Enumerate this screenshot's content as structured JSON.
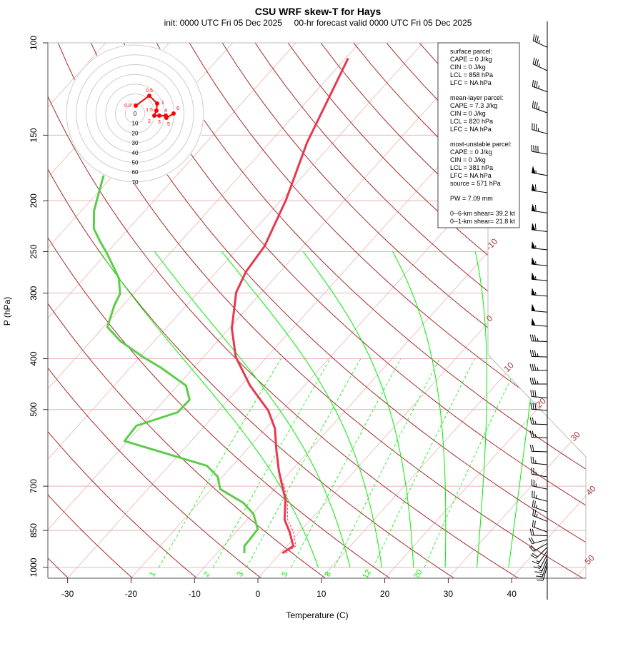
{
  "chart_data": {
    "type": "skew-t",
    "title": "CSU WRF skew-T for Hays",
    "subtitle": "init: 0000 UTC Fri 05 Dec 2025     00-hr forecast valid 0000 UTC Fri 05 Dec 2025",
    "xlabel": "Temperature (C)",
    "ylabel": "P (hPa)",
    "y_scale": "log",
    "ylim": [
      1000,
      100
    ],
    "xlim": [
      -33,
      45
    ],
    "pressure_ticks": [
      "100",
      "150",
      "200",
      "250",
      "300",
      "400",
      "500",
      "700",
      "850",
      "1000"
    ],
    "temperature_ticks": [
      "-30",
      "-20",
      "-10",
      "0",
      "10",
      "20",
      "30",
      "40"
    ],
    "isotherm_labels": [
      "-10",
      "0",
      "10",
      "20",
      "30",
      "40",
      "50"
    ],
    "mixing_ratio_labels": [
      "1",
      "2",
      "3",
      "5",
      "8",
      "12",
      "20"
    ],
    "temperature_profile": [
      [
        939,
        0.3
      ],
      [
        910,
        1.0
      ],
      [
        855,
        -1.6
      ],
      [
        811,
        -4.1
      ],
      [
        743,
        -6.8
      ],
      [
        655,
        -11.9
      ],
      [
        597,
        -15.3
      ],
      [
        543,
        -18.6
      ],
      [
        502,
        -22.2
      ],
      [
        450,
        -28.6
      ],
      [
        397,
        -34.9
      ],
      [
        350,
        -39.6
      ],
      [
        299,
        -44.0
      ],
      [
        273,
        -45.4
      ],
      [
        244,
        -46.1
      ],
      [
        199,
        -49.3
      ],
      [
        155,
        -54.1
      ],
      [
        107,
        -59.6
      ]
    ],
    "dewpoint_profile": [
      [
        939,
        -5.7
      ],
      [
        910,
        -6.7
      ],
      [
        883,
        -6.8
      ],
      [
        845,
        -7.0
      ],
      [
        791,
        -9.8
      ],
      [
        753,
        -13.0
      ],
      [
        709,
        -18.6
      ],
      [
        672,
        -20.7
      ],
      [
        640,
        -24.0
      ],
      [
        574,
        -40.5
      ],
      [
        537,
        -40.8
      ],
      [
        506,
        -36.2
      ],
      [
        479,
        -36.1
      ],
      [
        450,
        -38.7
      ],
      [
        416,
        -45.2
      ],
      [
        397,
        -49.5
      ],
      [
        370,
        -55.4
      ],
      [
        348,
        -59.4
      ],
      [
        316,
        -61.4
      ],
      [
        301,
        -62.1
      ],
      [
        281,
        -64.5
      ],
      [
        252,
        -69.9
      ],
      [
        240,
        -72.5
      ],
      [
        226,
        -75.5
      ],
      [
        209,
        -78.0
      ],
      [
        188,
        -80.4
      ],
      [
        179,
        -81.5
      ]
    ],
    "parcel_profile": [
      [
        939,
        0.8
      ],
      [
        910,
        1.4
      ],
      [
        855,
        -1.0
      ],
      [
        811,
        -3.6
      ],
      [
        743,
        -6.5
      ],
      [
        690,
        -9.5
      ]
    ],
    "hodograph": {
      "ring_labels": [
        "0",
        "10",
        "20",
        "30",
        "40",
        "50",
        "60",
        "70"
      ],
      "points": [
        {
          "label": "0.0",
          "u": 0.7,
          "v": 8.0
        },
        {
          "label": "0.5",
          "u": 14.6,
          "v": 18.2
        },
        {
          "label": "1",
          "u": 22.6,
          "v": 10.2
        },
        {
          "label": "1.5",
          "u": 21.9,
          "v": 2.9
        },
        {
          "label": "2",
          "u": 19.7,
          "v": -2.2
        },
        {
          "label": "3",
          "u": 24.8,
          "v": -2.2
        },
        {
          "label": "4",
          "u": 31.4,
          "v": -2.2
        },
        {
          "label": "5",
          "u": 32.1,
          "v": -4.4
        },
        {
          "label": "6",
          "u": 39.4,
          "v": 0.0
        }
      ]
    },
    "wind_barbs": [
      [
        102,
        295,
        35
      ],
      [
        113,
        295,
        35
      ],
      [
        124,
        290,
        35
      ],
      [
        136,
        290,
        35
      ],
      [
        149,
        285,
        35
      ],
      [
        163,
        280,
        40
      ],
      [
        179,
        280,
        55
      ],
      [
        193,
        278,
        60
      ],
      [
        211,
        278,
        60
      ],
      [
        229,
        277,
        60
      ],
      [
        248,
        276,
        55
      ],
      [
        266,
        276,
        55
      ],
      [
        284,
        275,
        55
      ],
      [
        304,
        275,
        55
      ],
      [
        326,
        275,
        50
      ],
      [
        347,
        275,
        50
      ],
      [
        371,
        272,
        35
      ],
      [
        397,
        272,
        35
      ],
      [
        421,
        270,
        35
      ],
      [
        447,
        270,
        35
      ],
      [
        475,
        275,
        30
      ],
      [
        502,
        275,
        30
      ],
      [
        534,
        272,
        25
      ],
      [
        566,
        272,
        25
      ],
      [
        602,
        272,
        20
      ],
      [
        637,
        276,
        25
      ],
      [
        672,
        280,
        25
      ],
      [
        709,
        282,
        25
      ],
      [
        748,
        285,
        25
      ],
      [
        784,
        290,
        25
      ],
      [
        817,
        292,
        25
      ],
      [
        856,
        290,
        20
      ],
      [
        870,
        272,
        20
      ],
      [
        885,
        255,
        20
      ],
      [
        900,
        240,
        20
      ],
      [
        915,
        225,
        20
      ],
      [
        930,
        215,
        15
      ],
      [
        945,
        208,
        15
      ],
      [
        960,
        202,
        15
      ],
      [
        975,
        198,
        15
      ],
      [
        990,
        195,
        15
      ]
    ],
    "colors": {
      "temperature": "#e8384f",
      "dewpoint": "#5ccc4a",
      "dry_adiabat": "#a52a2a",
      "isotherm": "#e8b4b4",
      "moist_adiabat": "#00ee00",
      "mixing_ratio": "#00ee00",
      "hodograph": "#ff0000"
    }
  },
  "indices": {
    "surface_header": "surface parcel:",
    "surface": [
      "CAPE = 0 J/kg",
      "CIN = 0 J/kg",
      "LCL = 858 hPa",
      "LFC = NA hPa"
    ],
    "mean_layer_header": "mean-layer parcel:",
    "mean_layer": [
      "CAPE = 7.3 J/kg",
      "CIN = 0 J/kg",
      "LCL = 820 hPa",
      "LFC = NA hPa"
    ],
    "most_unstable_header": "most-unstable parcel:",
    "most_unstable": [
      "CAPE = 0 J/kg",
      "CIN = 0 J/kg",
      "LCL = 381 hPa",
      "LFC = NA hPa",
      "source = 571 hPa"
    ],
    "pw": "PW =  7.09 mm",
    "shear": [
      "0--6-km shear= 39.2 kt",
      "0--1-km shear= 21.8 kt"
    ]
  }
}
